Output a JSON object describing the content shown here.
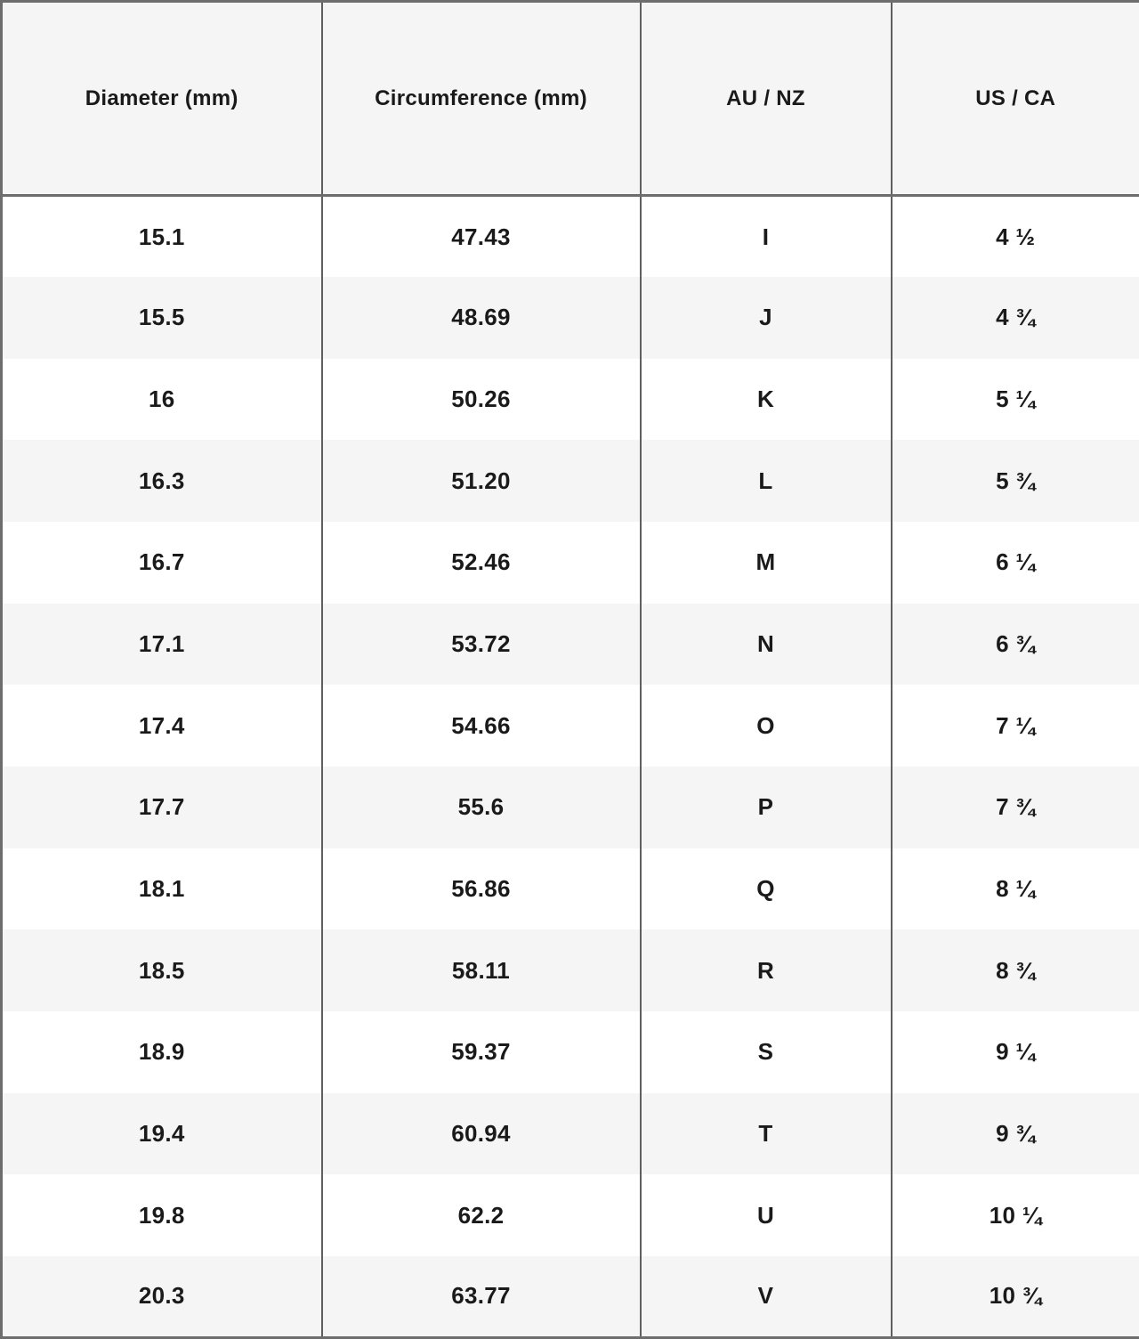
{
  "chart_data": {
    "type": "table",
    "columns": [
      "Diameter (mm)",
      "Circumference (mm)",
      "AU / NZ",
      "US / CA"
    ],
    "rows": [
      [
        "15.1",
        "47.43",
        "I",
        "4 ½"
      ],
      [
        "15.5",
        "48.69",
        "J",
        "4 ¾"
      ],
      [
        "16",
        "50.26",
        "K",
        "5 ¼"
      ],
      [
        "16.3",
        "51.20",
        "L",
        "5 ¾"
      ],
      [
        "16.7",
        "52.46",
        "M",
        "6 ¼"
      ],
      [
        "17.1",
        "53.72",
        "N",
        "6 ¾"
      ],
      [
        "17.4",
        "54.66",
        "O",
        "7 ¼"
      ],
      [
        "17.7",
        "55.6",
        "P",
        "7 ¾"
      ],
      [
        "18.1",
        "56.86",
        "Q",
        "8 ¼"
      ],
      [
        "18.5",
        "58.11",
        "R",
        "8 ¾"
      ],
      [
        "18.9",
        "59.37",
        "S",
        "9 ¼"
      ],
      [
        "19.4",
        "60.94",
        "T",
        "9 ¾"
      ],
      [
        "19.8",
        "62.2",
        "U",
        "10 ¼"
      ],
      [
        "20.3",
        "63.77",
        "V",
        "10 ¾"
      ]
    ],
    "layout": {
      "grid": "vertical column dividers only, no horizontal row dividers",
      "row_striping": "white / light-gray alternating, header gray"
    }
  },
  "colors": {
    "text": "#1a1a1a",
    "header_bg": "#f5f5f5",
    "row_alt_bg": "#f5f5f5",
    "row_bg": "#ffffff",
    "border_outer": "#6d6d6d",
    "border_divider": "#5f5f5f"
  }
}
